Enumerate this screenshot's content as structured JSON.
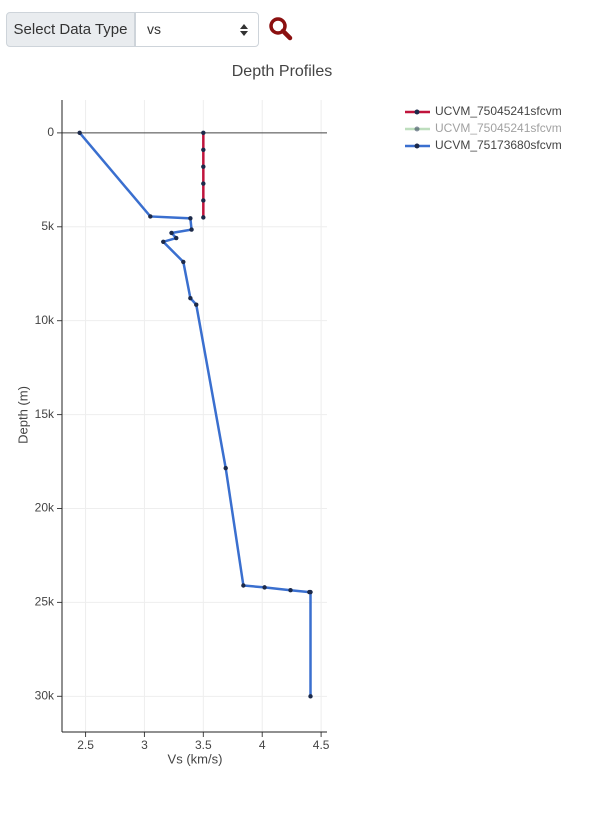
{
  "toolbar": {
    "button": "Select Data Type",
    "select": "vs"
  },
  "chart_data": {
    "type": "line",
    "title": "Depth Profiles",
    "x_label": "Vs (km/s)",
    "y_label": "Depth (m)",
    "xlim": [
      2.3,
      4.55
    ],
    "xticks": [
      2.5,
      3,
      3.5,
      4,
      4.5
    ],
    "ylim": [
      -1750,
      31900
    ],
    "y_reversed": true,
    "yticks": [
      {
        "value": 0,
        "label": "0"
      },
      {
        "value": 5000,
        "label": "5k"
      },
      {
        "value": 10000,
        "label": "10k"
      },
      {
        "value": 15000,
        "label": "15k"
      },
      {
        "value": 20000,
        "label": "20k"
      },
      {
        "value": 25000,
        "label": "25k"
      },
      {
        "value": 30000,
        "label": "30k"
      }
    ],
    "grid": true,
    "legend": "top-right",
    "series": [
      {
        "name": "UCVM_75045241sfcvm",
        "color": "#c0143c",
        "visible": true,
        "x": [
          3.5,
          3.5,
          3.5,
          3.5,
          3.5,
          3.5
        ],
        "values": [
          0,
          900,
          1800,
          2700,
          3600,
          4500
        ]
      },
      {
        "name": "UCVM_75045241sfcvm",
        "color": "#7fbf7f",
        "visible": false
      },
      {
        "name": "UCVM_75173680sfcvm",
        "color": "#3a6fcf",
        "visible": true,
        "x": [
          2.45,
          3.05,
          3.39,
          3.4,
          3.23,
          3.27,
          3.16,
          3.33,
          3.39,
          3.44,
          3.69,
          3.84,
          4.02,
          4.24,
          4.4,
          4.41,
          4.41
        ],
        "values": [
          0,
          4450,
          4550,
          5150,
          5330,
          5600,
          5800,
          6870,
          8800,
          9150,
          17850,
          24100,
          24200,
          24350,
          24450,
          24450,
          30000
        ]
      }
    ]
  }
}
